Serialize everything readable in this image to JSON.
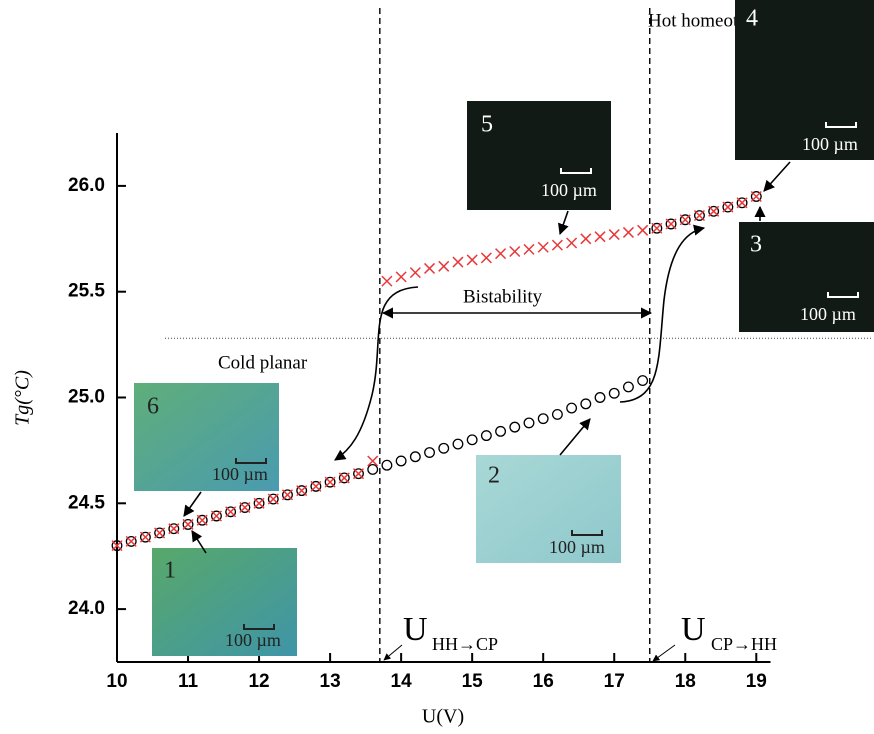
{
  "chart_data": {
    "type": "scatter",
    "x_label": "U(V)",
    "y_label": "Tg(°C)",
    "xlim": [
      10,
      19.2
    ],
    "ylim": [
      23.75,
      26.25
    ],
    "xticks": [
      10,
      11,
      12,
      13,
      14,
      15,
      16,
      17,
      18,
      19
    ],
    "yticks": [
      {
        "value": 24,
        "label": "24.0"
      },
      24.5,
      {
        "value": 25,
        "label": "25.0"
      },
      25.5,
      {
        "value": 26,
        "label": "26.0"
      }
    ],
    "series": [
      {
        "marker": "circle",
        "color": "#000000",
        "x": [
          10,
          10.2,
          10.4,
          10.6,
          10.8,
          11,
          11.2,
          11.4,
          11.6,
          11.8,
          12,
          12.2,
          12.4,
          12.6,
          12.8,
          13,
          13.2,
          13.4,
          13.6,
          13.8,
          14,
          14.2,
          14.4,
          14.6,
          14.8,
          15,
          15.2,
          15.4,
          15.6,
          15.8,
          16,
          16.2,
          16.4,
          16.6,
          16.8,
          17,
          17.2,
          17.4,
          17.6,
          17.8,
          18,
          18.2,
          18.4,
          18.6,
          18.8,
          19
        ],
        "values": [
          24.3,
          24.32,
          24.34,
          24.36,
          24.38,
          24.4,
          24.42,
          24.44,
          24.46,
          24.48,
          24.5,
          24.52,
          24.54,
          24.56,
          24.58,
          24.6,
          24.62,
          24.64,
          24.66,
          24.68,
          24.7,
          24.72,
          24.74,
          24.76,
          24.78,
          24.8,
          24.82,
          24.84,
          24.86,
          24.88,
          24.9,
          24.92,
          24.95,
          24.97,
          25.0,
          25.02,
          25.05,
          25.08,
          25.8,
          25.82,
          25.84,
          25.86,
          25.88,
          25.9,
          25.92,
          25.95
        ]
      },
      {
        "marker": "cross",
        "color": "#e8383a",
        "x": [
          10,
          10.2,
          10.4,
          10.6,
          10.8,
          11,
          11.2,
          11.4,
          11.6,
          11.8,
          12,
          12.2,
          12.4,
          12.6,
          12.8,
          13,
          13.2,
          13.4,
          13.6,
          13.8,
          14,
          14.2,
          14.4,
          14.6,
          14.8,
          15,
          15.2,
          15.4,
          15.6,
          15.8,
          16,
          16.2,
          16.4,
          16.6,
          16.8,
          17,
          17.2,
          17.4,
          17.6,
          17.8,
          18,
          18.2,
          18.4,
          18.6,
          18.8,
          19
        ],
        "values": [
          24.3,
          24.32,
          24.34,
          24.36,
          24.38,
          24.4,
          24.42,
          24.44,
          24.46,
          24.48,
          24.5,
          24.52,
          24.54,
          24.56,
          24.58,
          24.6,
          24.62,
          24.64,
          24.7,
          25.55,
          25.57,
          25.59,
          25.61,
          25.62,
          25.64,
          25.65,
          25.66,
          25.68,
          25.69,
          25.7,
          25.71,
          25.72,
          25.73,
          25.75,
          25.76,
          25.77,
          25.78,
          25.79,
          25.8,
          25.82,
          25.84,
          25.86,
          25.88,
          25.9,
          25.92,
          25.95
        ]
      }
    ],
    "vlines": [
      13.7,
      17.5
    ],
    "hline": 25.28,
    "annotations": {
      "hot": "Hot homeotropic",
      "cold": "Cold planar",
      "bistability": "Bistability",
      "u1": {
        "text": "U",
        "sub": "HH→CP"
      },
      "u2": {
        "text": "U",
        "sub": "CP→HH"
      }
    },
    "insets": [
      {
        "label": "1",
        "scale_bar": "100 µm"
      },
      {
        "label": "2",
        "scale_bar": "100 µm"
      },
      {
        "label": "3",
        "scale_bar": "100 µm"
      },
      {
        "label": "4",
        "scale_bar": "100 µm"
      },
      {
        "label": "5",
        "scale_bar": "100 µm"
      },
      {
        "label": "6",
        "scale_bar": "100 µm"
      }
    ]
  }
}
